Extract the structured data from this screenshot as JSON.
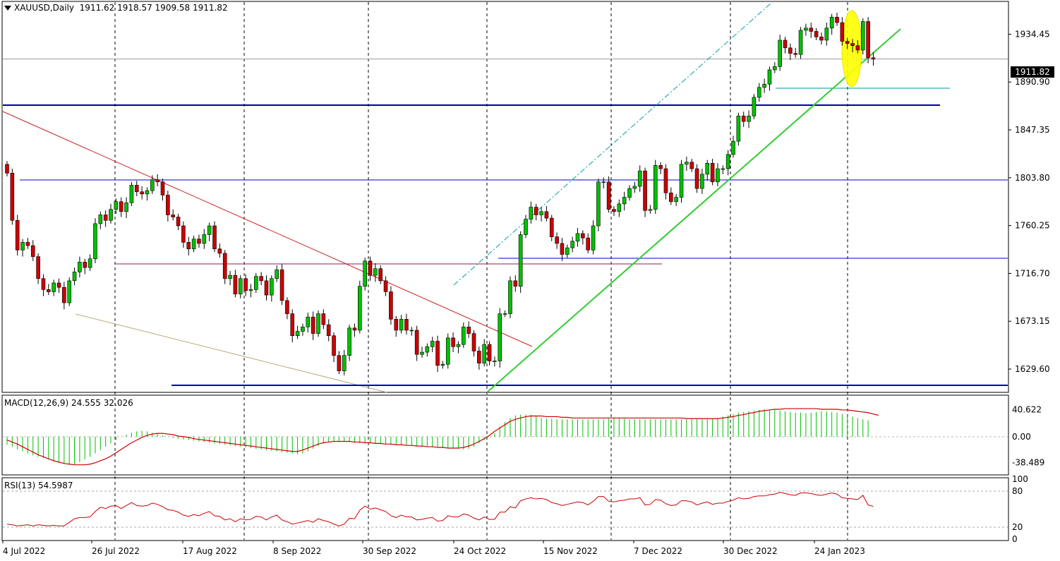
{
  "header": {
    "symbol": "XAUUSD,Daily",
    "ohlc": "1911.62 1918.57 1909.58 1911.82"
  },
  "macd_label": "MACD(12,26,9) 24.555 32.026",
  "rsi_label": "RSI(13) 54.5987",
  "current_price_badge": "1911.82",
  "chart_data": [
    {
      "type": "candlestick",
      "title": "XAUUSD,Daily",
      "ylim": [
        1611,
        1963
      ],
      "y_ticks": [
        "1934.45",
        "1890.90",
        "1847.35",
        "1803.80",
        "1760.25",
        "1716.70",
        "1673.15",
        "1629.60"
      ],
      "x_labels": [
        "4 Jul 2022",
        "26 Jul 2022",
        "17 Aug 2022",
        "8 Sep 2022",
        "30 Sep 2022",
        "24 Oct 2022",
        "15 Nov 2022",
        "7 Dec 2022",
        "30 Dec 2022",
        "24 Jan 2023"
      ],
      "up_color": "#00c000",
      "down_color": "#cc0000",
      "close": [
        1808,
        1765,
        1738,
        1745,
        1742,
        1732,
        1712,
        1702,
        1700,
        1708,
        1704,
        1690,
        1710,
        1718,
        1727,
        1722,
        1730,
        1762,
        1770,
        1765,
        1775,
        1782,
        1773,
        1781,
        1797,
        1791,
        1789,
        1792,
        1802,
        1800,
        1788,
        1770,
        1768,
        1760,
        1745,
        1739,
        1748,
        1744,
        1752,
        1760,
        1739,
        1735,
        1712,
        1715,
        1698,
        1712,
        1701,
        1702,
        1714,
        1710,
        1697,
        1712,
        1720,
        1692,
        1680,
        1660,
        1664,
        1668,
        1677,
        1662,
        1680,
        1670,
        1660,
        1642,
        1628,
        1642,
        1667,
        1665,
        1705,
        1728,
        1715,
        1721,
        1710,
        1700,
        1675,
        1665,
        1675,
        1665,
        1665,
        1643,
        1645,
        1650,
        1655,
        1633,
        1634,
        1658,
        1650,
        1652,
        1668,
        1662,
        1646,
        1635,
        1652,
        1637,
        1637,
        1680,
        1680,
        1710,
        1705,
        1752,
        1766,
        1777,
        1770,
        1773,
        1767,
        1750,
        1744,
        1734,
        1740,
        1746,
        1753,
        1749,
        1738,
        1760,
        1800,
        1800,
        1775,
        1773,
        1780,
        1786,
        1794,
        1796,
        1810,
        1774,
        1775,
        1815,
        1812,
        1790,
        1782,
        1786,
        1816,
        1818,
        1812,
        1794,
        1807,
        1817,
        1800,
        1812,
        1812,
        1825,
        1837,
        1860,
        1855,
        1860,
        1877,
        1886,
        1889,
        1902,
        1905,
        1929,
        1922,
        1917,
        1916,
        1938,
        1940,
        1937,
        1932,
        1929,
        1940,
        1950,
        1945,
        1928,
        1926,
        1924,
        1920,
        1946,
        1913,
        1911.82
      ]
    },
    {
      "type": "macd",
      "title": "MACD(12,26,9)",
      "ylim": [
        -55,
        60
      ],
      "y_ticks": [
        "40.622",
        "0.00",
        "-38.489"
      ],
      "histogram_color": "#00c000",
      "signal_color": "#cc0000",
      "histogram": [
        -12,
        -15,
        -19,
        -22,
        -25,
        -28,
        -30,
        -32,
        -34,
        -36,
        -38,
        -40,
        -42,
        -41,
        -38,
        -34,
        -30,
        -25,
        -20,
        -15,
        -10,
        -5,
        0,
        3,
        6,
        8,
        9,
        8,
        6,
        4,
        2,
        0,
        -2,
        -3,
        -4,
        -5,
        -6,
        -7,
        -8,
        -9,
        -10,
        -11,
        -12,
        -13,
        -14,
        -15,
        -16,
        -17,
        -18,
        -19,
        -20,
        -21,
        -22,
        -23,
        -24,
        -25,
        -26,
        -25,
        -22,
        -18,
        -14,
        -10,
        -8,
        -7,
        -6,
        -7,
        -8,
        -9,
        -10,
        -10,
        -10,
        -10,
        -11,
        -11,
        -12,
        -12,
        -12,
        -13,
        -13,
        -14,
        -15,
        -15,
        -16,
        -16,
        -17,
        -17,
        -18,
        -18,
        -19,
        -18,
        -15,
        -10,
        -5,
        0,
        5,
        15,
        22,
        28,
        32,
        33,
        33,
        33,
        31,
        28,
        27,
        27,
        26,
        26,
        26,
        26,
        26,
        26,
        26,
        26,
        26,
        26,
        27,
        28,
        28,
        27,
        26,
        26,
        26,
        26,
        26,
        26,
        26,
        26,
        26,
        26,
        26,
        26,
        26,
        26,
        26,
        26,
        27,
        28,
        30,
        32,
        34,
        36,
        37,
        38,
        39,
        40,
        41,
        40,
        40,
        39,
        38,
        37,
        36,
        36,
        35,
        36,
        37,
        38,
        38,
        37,
        36,
        34,
        32,
        30,
        28,
        26,
        24.555
      ],
      "signal": [
        -5,
        -8,
        -11,
        -15,
        -19,
        -23,
        -27,
        -30,
        -33,
        -36,
        -38,
        -40,
        -41,
        -42,
        -42,
        -42,
        -41,
        -39,
        -36,
        -33,
        -29,
        -24,
        -19,
        -14,
        -9,
        -5,
        -1,
        2,
        4,
        5,
        5,
        4,
        3,
        1,
        0,
        -1,
        -3,
        -4,
        -5,
        -6,
        -7,
        -8,
        -9,
        -10,
        -11,
        -12,
        -13,
        -14,
        -15,
        -16,
        -17,
        -18,
        -19,
        -20,
        -21,
        -22,
        -22,
        -20,
        -17,
        -14,
        -11,
        -9,
        -8,
        -7,
        -7,
        -7,
        -7,
        -8,
        -8,
        -9,
        -9,
        -10,
        -10,
        -11,
        -11,
        -12,
        -12,
        -13,
        -13,
        -14,
        -14,
        -15,
        -15,
        -16,
        -16,
        -17,
        -17,
        -17,
        -16,
        -14,
        -11,
        -7,
        -3,
        2,
        8,
        13,
        18,
        23,
        26,
        28,
        30,
        31,
        31,
        31,
        30,
        30,
        30,
        29,
        29,
        28,
        28,
        28,
        28,
        28,
        28,
        28,
        28,
        28,
        28,
        28,
        28,
        28,
        28,
        28,
        28,
        28,
        28,
        28,
        28,
        28,
        28,
        27,
        27,
        27,
        27,
        27,
        27,
        27,
        28,
        29,
        30,
        32,
        33,
        35,
        36,
        38,
        39,
        40,
        41,
        41,
        42,
        42,
        42,
        42,
        42,
        42,
        42,
        41,
        41,
        41,
        41,
        40,
        40,
        39,
        38,
        37,
        36,
        34,
        32.026
      ]
    },
    {
      "type": "line",
      "title": "RSI(13)",
      "ylim": [
        0,
        100
      ],
      "y_ticks": [
        "100",
        "80",
        "20",
        "0"
      ],
      "line_color": "#cc0000",
      "values": [
        25,
        24,
        22,
        23,
        24,
        22,
        24,
        23,
        22,
        23,
        22,
        22,
        28,
        34,
        36,
        36,
        37,
        46,
        53,
        51,
        55,
        56,
        51,
        56,
        61,
        56,
        55,
        56,
        60,
        58,
        54,
        49,
        48,
        45,
        40,
        38,
        41,
        39,
        43,
        46,
        39,
        38,
        32,
        34,
        29,
        34,
        32,
        33,
        38,
        37,
        32,
        37,
        40,
        32,
        29,
        25,
        27,
        29,
        31,
        28,
        34,
        31,
        29,
        25,
        22,
        25,
        35,
        34,
        48,
        55,
        50,
        52,
        49,
        46,
        39,
        36,
        40,
        37,
        37,
        32,
        33,
        35,
        36,
        30,
        31,
        39,
        37,
        37,
        42,
        40,
        35,
        32,
        37,
        33,
        33,
        45,
        45,
        54,
        52,
        64,
        67,
        69,
        67,
        68,
        66,
        61,
        59,
        56,
        58,
        60,
        62,
        61,
        57,
        63,
        71,
        71,
        63,
        62,
        64,
        65,
        67,
        67,
        69,
        57,
        58,
        66,
        65,
        59,
        56,
        57,
        64,
        64,
        62,
        57,
        60,
        62,
        58,
        60,
        60,
        63,
        65,
        69,
        67,
        68,
        71,
        72,
        72,
        74,
        75,
        78,
        76,
        74,
        73,
        77,
        77,
        76,
        74,
        73,
        75,
        77,
        75,
        69,
        68,
        67,
        66,
        73,
        57,
        54.5987
      ]
    }
  ]
}
